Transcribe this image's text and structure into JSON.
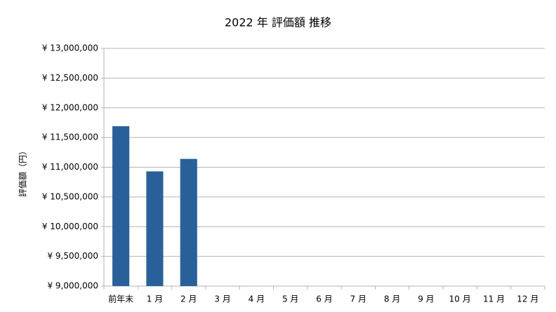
{
  "chart_data": {
    "type": "bar",
    "title": "2022 年 評価額 推移",
    "y_label": "評価額（円）",
    "categories": [
      "前年末",
      "1 月",
      "2 月",
      "3 月",
      "4 月",
      "5 月",
      "6 月",
      "7 月",
      "8 月",
      "9 月",
      "10 月",
      "11 月",
      "12 月"
    ],
    "values": [
      11690000,
      10930000,
      11140000,
      null,
      null,
      null,
      null,
      null,
      null,
      null,
      null,
      null,
      null
    ],
    "color": "#2a6099",
    "ylim": [
      9000000,
      13000000
    ],
    "yticks": [
      {
        "value": 9000000,
        "label": "¥ 9,000,000"
      },
      {
        "value": 9500000,
        "label": "¥ 9,500,000"
      },
      {
        "value": 10000000,
        "label": "¥ 10,000,000"
      },
      {
        "value": 10500000,
        "label": "¥ 10,500,000"
      },
      {
        "value": 11000000,
        "label": "¥ 11,000,000"
      },
      {
        "value": 11500000,
        "label": "¥ 11,500,000"
      },
      {
        "value": 12000000,
        "label": "¥ 12,000,000"
      },
      {
        "value": 12500000,
        "label": "¥ 12,500,000"
      },
      {
        "value": 13000000,
        "label": "¥ 13,000,000"
      }
    ],
    "grid": true
  }
}
